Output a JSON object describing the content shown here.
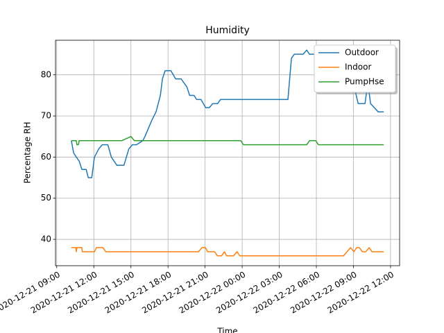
{
  "chart_data": {
    "type": "line",
    "title": "Humidity",
    "xlabel": "Time",
    "ylabel": "Percentage RH",
    "xlim": [
      "2020-12-21 08:54",
      "2020-12-22 12:44"
    ],
    "xticks": [
      "2020-12-21 09:00",
      "2020-12-21 12:00",
      "2020-12-21 15:00",
      "2020-12-21 18:00",
      "2020-12-21 21:00",
      "2020-12-22 00:00",
      "2020-12-22 03:00",
      "2020-12-22 06:00",
      "2020-12-22 09:00",
      "2020-12-22 12:00"
    ],
    "ylim": [
      33.6,
      88.4
    ],
    "yticks": [
      40,
      50,
      60,
      70,
      80
    ],
    "grid": true,
    "legend": "upper-right",
    "series": [
      {
        "name": "Outdoor",
        "color": "#1f77b4",
        "x": [
          "2020-12-21 10:11",
          "2020-12-21 10:22",
          "2020-12-21 10:35",
          "2020-12-21 10:49",
          "2020-12-21 11:02",
          "2020-12-21 11:23",
          "2020-12-21 11:33",
          "2020-12-21 11:50",
          "2020-12-21 12:03",
          "2020-12-21 12:24",
          "2020-12-21 12:41",
          "2020-12-21 13:08",
          "2020-12-21 13:25",
          "2020-12-21 13:52",
          "2020-12-21 14:26",
          "2020-12-21 14:50",
          "2020-12-21 15:07",
          "2020-12-21 15:27",
          "2020-12-21 15:58",
          "2020-12-21 16:08",
          "2020-12-21 16:25",
          "2020-12-21 16:42",
          "2020-12-21 17:02",
          "2020-12-21 17:23",
          "2020-12-21 17:33",
          "2020-12-21 17:46",
          "2020-12-21 18:14",
          "2020-12-21 18:37",
          "2020-12-21 19:04",
          "2020-12-21 19:32",
          "2020-12-21 19:45",
          "2020-12-21 20:06",
          "2020-12-21 20:19",
          "2020-12-21 20:40",
          "2020-12-21 21:03",
          "2020-12-21 21:20",
          "2020-12-21 21:37",
          "2020-12-21 22:01",
          "2020-12-21 22:15",
          "2020-12-22 03:42",
          "2020-12-22 03:59",
          "2020-12-22 04:13",
          "2020-12-22 04:56",
          "2020-12-22 05:13",
          "2020-12-22 05:27",
          "2020-12-22 08:46",
          "2020-12-22 09:09",
          "2020-12-22 09:23",
          "2020-12-22 09:56",
          "2020-12-22 10:10",
          "2020-12-22 10:23",
          "2020-12-22 11:00",
          "2020-12-22 11:27"
        ],
        "values": [
          64,
          61,
          60,
          59,
          57,
          57,
          55,
          55,
          60,
          62,
          63,
          63,
          60,
          58,
          58,
          62,
          63,
          63,
          64,
          65,
          67,
          69,
          71,
          75,
          79,
          81,
          81,
          79,
          79,
          77,
          75,
          75,
          74,
          74,
          72,
          72,
          73,
          73,
          74,
          74,
          84,
          85,
          85,
          86,
          85,
          85,
          76,
          73,
          73,
          78,
          73,
          71,
          71
        ]
      },
      {
        "name": "Indoor",
        "color": "#ff7f0e",
        "x": [
          "2020-12-21 10:11",
          "2020-12-21 10:33",
          "2020-12-21 10:35",
          "2020-12-21 10:38",
          "2020-12-21 11:02",
          "2020-12-21 11:04",
          "2020-12-21 12:03",
          "2020-12-21 12:13",
          "2020-12-21 12:44",
          "2020-12-21 12:58",
          "2020-12-21 20:28",
          "2020-12-21 20:45",
          "2020-12-21 21:02",
          "2020-12-21 21:12",
          "2020-12-21 21:46",
          "2020-12-21 22:00",
          "2020-12-21 22:20",
          "2020-12-21 22:34",
          "2020-12-21 22:44",
          "2020-12-21 23:18",
          "2020-12-21 23:35",
          "2020-12-21 23:48",
          "2020-12-22 08:12",
          "2020-12-22 08:46",
          "2020-12-22 09:02",
          "2020-12-22 09:16",
          "2020-12-22 09:29",
          "2020-12-22 09:43",
          "2020-12-22 10:00",
          "2020-12-22 10:16",
          "2020-12-22 10:30",
          "2020-12-22 11:27"
        ],
        "values": [
          38,
          38,
          37,
          38,
          38,
          37,
          37,
          38,
          38,
          37,
          37,
          38,
          38,
          37,
          37,
          36,
          36,
          37,
          36,
          36,
          37,
          36,
          36,
          38,
          37,
          38,
          38,
          37,
          37,
          38,
          37,
          37
        ]
      },
      {
        "name": "PumpHse",
        "color": "#2ca02c",
        "x": [
          "2020-12-21 10:11",
          "2020-12-21 10:35",
          "2020-12-21 10:38",
          "2020-12-21 10:45",
          "2020-12-21 10:49",
          "2020-12-21 14:16",
          "2020-12-21 15:00",
          "2020-12-21 15:17",
          "2020-12-21 23:53",
          "2020-12-22 00:06",
          "2020-12-22 05:13",
          "2020-12-22 05:27",
          "2020-12-22 05:57",
          "2020-12-22 06:10",
          "2020-12-22 11:27"
        ],
        "values": [
          64,
          64,
          63,
          63,
          64,
          64,
          65,
          64,
          64,
          63,
          63,
          64,
          64,
          63,
          63
        ]
      }
    ]
  }
}
